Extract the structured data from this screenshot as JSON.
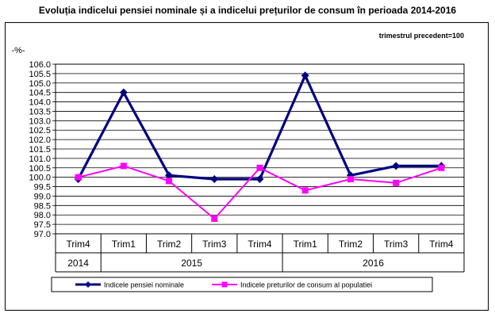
{
  "title": "Evoluția indicelui pensiei nominale și a indicelui prețurilor de consum în perioada 2014-2016",
  "chart_data": {
    "type": "line",
    "note": "trimestrul precedent=100",
    "ylabel": "-%-",
    "ylim": [
      97.0,
      106.0
    ],
    "ytick_step": 0.5,
    "yticks": [
      "106.0",
      "105.5",
      "105.0",
      "104.5",
      "104.0",
      "103.5",
      "103.0",
      "102.5",
      "102.0",
      "101.5",
      "101.0",
      "100.5",
      "100.0",
      "99.5",
      "99.0",
      "98.5",
      "98.0",
      "97.5",
      "97.0"
    ],
    "categories": [
      "Trim4",
      "Trim1",
      "Trim2",
      "Trim3",
      "Trim4",
      "Trim1",
      "Trim2",
      "Trim3",
      "Trim4"
    ],
    "year_groups": [
      {
        "label": "2014",
        "span": 1
      },
      {
        "label": "2015",
        "span": 4
      },
      {
        "label": "2016",
        "span": 4
      }
    ],
    "grid": true,
    "legend_position": "bottom",
    "series": [
      {
        "name": "Indicele pensiei nominale",
        "color": "#000080",
        "marker": "diamond",
        "values": [
          99.9,
          104.5,
          100.1,
          99.9,
          99.9,
          105.4,
          100.1,
          100.6,
          100.6
        ]
      },
      {
        "name": "Indicele preturilor de consum al populatiei",
        "color": "#FF00FF",
        "marker": "square",
        "values": [
          100.0,
          100.6,
          99.8,
          97.8,
          100.5,
          99.3,
          99.9,
          99.7,
          100.5
        ]
      }
    ]
  }
}
